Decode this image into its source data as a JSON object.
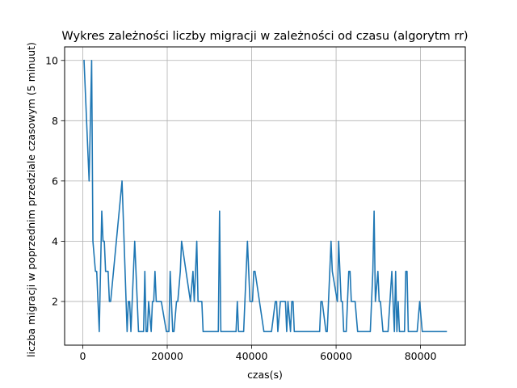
{
  "chart_data": {
    "type": "line",
    "title": "Wykres zależności liczby migracji w zależności od czasu (algorytm rr)",
    "xlabel": "czas(s)",
    "ylabel": "liczba migracji w poprzednim  przedziale czasowym (5 minuut)",
    "xlim": [
      -4300,
      90600
    ],
    "ylim": [
      0.55,
      10.45
    ],
    "xticks": [
      0,
      20000,
      40000,
      60000,
      80000
    ],
    "yticks": [
      2,
      4,
      6,
      8,
      10
    ],
    "xtick_labels": [
      "0",
      "20000",
      "40000",
      "60000",
      "80000"
    ],
    "ytick_labels": [
      "2",
      "4",
      "6",
      "8",
      "10"
    ],
    "grid": true,
    "color": "#1f77b4",
    "series": [
      {
        "x": [
          300,
          1500,
          1800,
          2100,
          2400,
          3000,
          3300,
          3900,
          4200,
          4500,
          4800,
          5100,
          5400,
          6000,
          6300,
          6600,
          9300,
          10500,
          10800,
          11100,
          11400,
          12300,
          12600,
          13200,
          14400,
          14700,
          15000,
          15300,
          15600,
          16200,
          16500,
          16800,
          17100,
          17400,
          18000,
          18300,
          18600,
          19800,
          20400,
          20700,
          21300,
          21600,
          22200,
          22500,
          23100,
          23400,
          25500,
          26100,
          26400,
          27000,
          27300,
          27600,
          27900,
          28200,
          28500,
          29700,
          32100,
          32400,
          32700,
          33000,
          36300,
          36600,
          36900,
          37500,
          38100,
          38400,
          39000,
          39300,
          39600,
          40200,
          40500,
          40800,
          42900,
          44700,
          45600,
          45900,
          46200,
          46800,
          47400,
          48000,
          48300,
          48600,
          49200,
          49500,
          49800,
          50100,
          50400,
          54000,
          56100,
          56400,
          56700,
          57600,
          57900,
          58800,
          59100,
          60300,
          60600,
          60900,
          61200,
          61500,
          61800,
          62100,
          62400,
          63000,
          63300,
          63600,
          64200,
          64500,
          65100,
          66300,
          68100,
          68700,
          69000,
          69300,
          69900,
          70200,
          70500,
          71100,
          71700,
          72300,
          73200,
          73800,
          74100,
          74400,
          74700,
          75000,
          75600,
          76200,
          76500,
          76800,
          77100,
          77700,
          79200,
          79800,
          80400,
          81000,
          81300,
          81600,
          83400,
          86100
        ],
        "values": [
          10,
          6,
          8,
          10,
          4,
          3,
          3,
          1,
          3,
          5,
          4,
          4,
          3,
          3,
          2,
          2,
          6,
          1,
          2,
          2,
          1,
          4,
          3,
          1,
          1,
          3,
          1,
          1,
          2,
          1,
          2,
          2,
          3,
          2,
          2,
          2,
          2,
          1,
          1,
          3,
          1,
          1,
          2,
          2,
          3,
          4,
          2,
          3,
          2,
          4,
          2,
          2,
          2,
          2,
          1,
          1,
          1,
          5,
          1,
          1,
          1,
          2,
          1,
          1,
          1,
          2,
          4,
          3,
          2,
          2,
          3,
          3,
          1,
          1,
          2,
          2,
          1,
          2,
          2,
          2,
          1,
          2,
          1,
          2,
          2,
          1,
          1,
          1,
          1,
          2,
          2,
          1,
          1,
          4,
          3,
          2,
          4,
          3,
          2,
          2,
          1,
          1,
          1,
          3,
          3,
          2,
          2,
          2,
          1,
          1,
          1,
          3,
          5,
          2,
          3,
          2,
          2,
          1,
          1,
          1,
          3,
          1,
          3,
          1,
          2,
          1,
          1,
          1,
          3,
          3,
          1,
          1,
          1,
          2,
          1,
          1,
          1,
          1,
          1,
          1
        ]
      }
    ]
  }
}
